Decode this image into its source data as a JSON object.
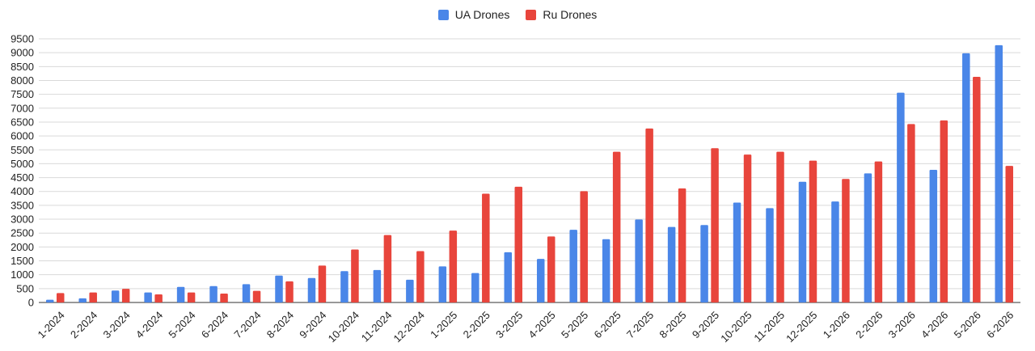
{
  "chart_data": {
    "type": "bar",
    "title": "",
    "xlabel": "",
    "ylabel": "",
    "ylim": [
      0,
      9500
    ],
    "yticks": [
      0,
      500,
      1000,
      1500,
      2000,
      2500,
      3000,
      3500,
      4000,
      4500,
      5000,
      5500,
      6000,
      6500,
      7000,
      7500,
      8000,
      8500,
      9000,
      9500
    ],
    "grid": true,
    "legend_position": "top-center",
    "categories": [
      "1-2024",
      "2-2024",
      "3-2024",
      "4-2024",
      "5-2024",
      "6-2024",
      "7-2024",
      "8-2024",
      "9-2024",
      "10-2024",
      "11-2024",
      "12-2024",
      "1-2025",
      "2-2025",
      "3-2025",
      "4-2025",
      "5-2025",
      "6-2025",
      "7-2025",
      "8-2025",
      "9-2025",
      "10-2025",
      "11-2025",
      "12-2025",
      "1-2026",
      "2-2026",
      "3-2026",
      "4-2026",
      "5-2026",
      "6-2026"
    ],
    "series": [
      {
        "name": "UA Drones",
        "color": "#4a86e8",
        "values": [
          100,
          150,
          430,
          360,
          560,
          590,
          660,
          970,
          880,
          1130,
          1170,
          820,
          1300,
          1060,
          1810,
          1570,
          2620,
          2280,
          2990,
          2720,
          2790,
          3600,
          3400,
          4350,
          3640,
          4650,
          7560,
          4780,
          8980,
          9270
        ]
      },
      {
        "name": "Ru Drones",
        "color": "#e8453c",
        "values": [
          340,
          360,
          490,
          290,
          360,
          320,
          420,
          760,
          1330,
          1910,
          2430,
          1850,
          2590,
          3920,
          4170,
          2380,
          4010,
          5430,
          6270,
          4110,
          5560,
          5330,
          5430,
          5110,
          4450,
          5080,
          6430,
          6560,
          8130,
          4920
        ]
      }
    ]
  }
}
